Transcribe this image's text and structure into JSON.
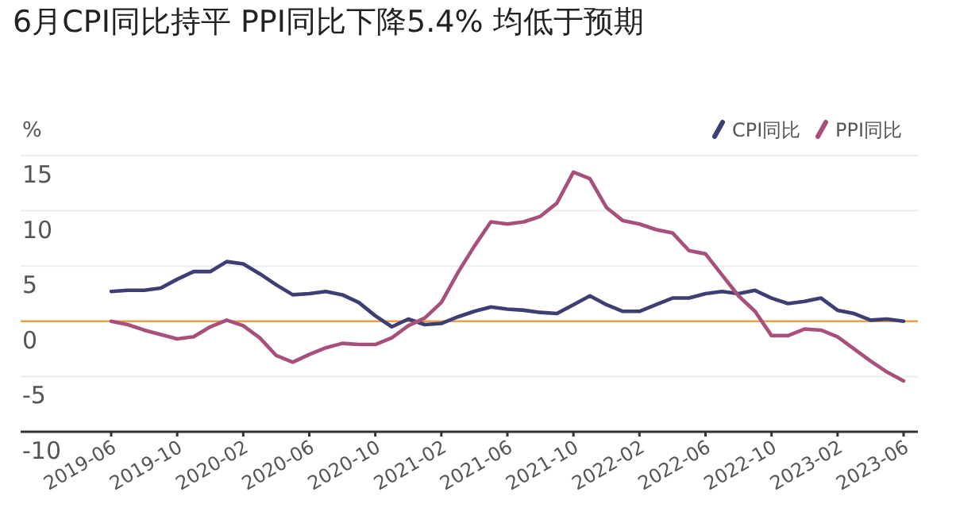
{
  "chart_data": {
    "type": "line",
    "title": "6月CPI同比持平 PPI同比下降5.4% 均低于预期",
    "ylabel": "%",
    "categories": [
      "2019-06",
      null,
      null,
      null,
      "2019-10",
      null,
      null,
      null,
      "2020-02",
      null,
      null,
      null,
      "2020-06",
      null,
      null,
      null,
      "2020-10",
      null,
      null,
      null,
      "2021-02",
      null,
      null,
      null,
      "2021-06",
      null,
      null,
      null,
      "2021-10",
      null,
      null,
      null,
      "2022-02",
      null,
      null,
      null,
      "2022-06",
      null,
      null,
      null,
      "2022-10",
      null,
      null,
      null,
      "2023-02",
      null,
      null,
      null,
      "2023-06"
    ],
    "series": [
      {
        "name": "CPI同比",
        "color": "#3d3f73",
        "values": [
          2.7,
          2.8,
          2.8,
          3.0,
          3.8,
          4.5,
          4.5,
          5.4,
          5.2,
          4.3,
          3.3,
          2.4,
          2.5,
          2.7,
          2.4,
          1.7,
          0.5,
          -0.5,
          0.2,
          -0.3,
          -0.2,
          0.4,
          0.9,
          1.3,
          1.1,
          1.0,
          0.8,
          0.7,
          1.5,
          2.3,
          1.5,
          0.9,
          0.9,
          1.5,
          2.1,
          2.1,
          2.5,
          2.7,
          2.5,
          2.8,
          2.1,
          1.6,
          1.8,
          2.1,
          1.0,
          0.7,
          0.1,
          0.2,
          0.0
        ]
      },
      {
        "name": "PPI同比",
        "color": "#a8507c",
        "values": [
          0.0,
          -0.3,
          -0.8,
          -1.2,
          -1.6,
          -1.4,
          -0.5,
          0.1,
          -0.4,
          -1.5,
          -3.1,
          -3.7,
          -3.0,
          -2.4,
          -2.0,
          -2.1,
          -2.1,
          -1.5,
          -0.4,
          0.3,
          1.7,
          4.4,
          6.8,
          9.0,
          8.8,
          9.0,
          9.5,
          10.7,
          13.5,
          12.9,
          10.3,
          9.1,
          8.8,
          8.3,
          8.0,
          6.4,
          6.1,
          4.2,
          2.3,
          0.9,
          -1.3,
          -1.3,
          -0.7,
          -0.8,
          -1.4,
          -2.5,
          -3.6,
          -4.6,
          -5.4
        ]
      }
    ],
    "ylim": [
      -10,
      15
    ],
    "yticks": [
      -10,
      -5,
      0,
      5,
      10,
      15
    ],
    "grid": "y",
    "legend": "top right",
    "ref_lines": [
      {
        "axis": "y",
        "value": 0,
        "color": "#e8a04a"
      }
    ]
  }
}
